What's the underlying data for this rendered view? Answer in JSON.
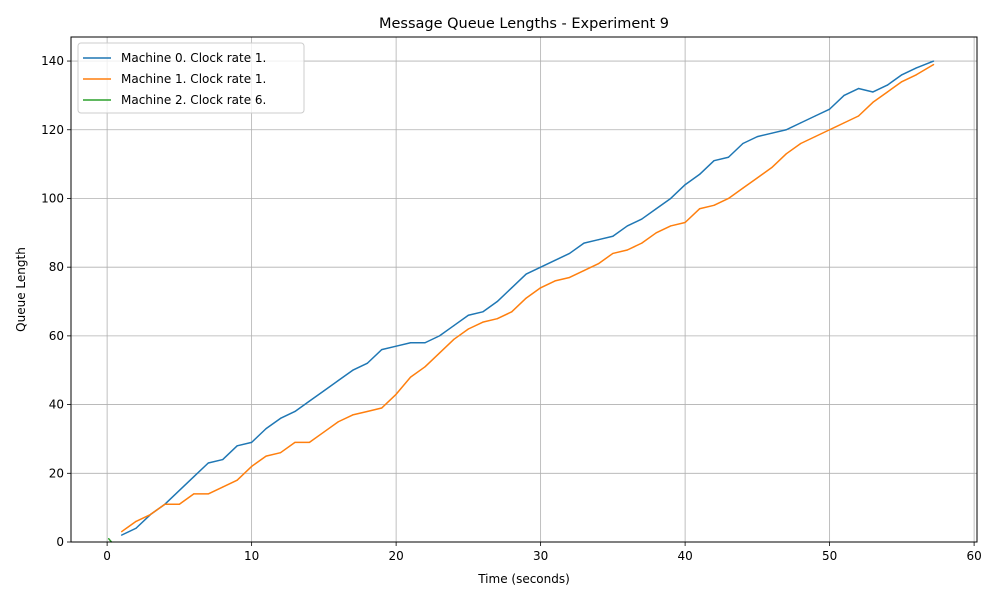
{
  "chart_data": {
    "type": "line",
    "title": "Message Queue Lengths - Experiment 9",
    "xlabel": "Time (seconds)",
    "ylabel": "Queue Length",
    "xlim": [
      -2.5,
      60.2
    ],
    "ylim": [
      0,
      147
    ],
    "xticks": [
      0,
      10,
      20,
      30,
      40,
      50,
      60
    ],
    "yticks": [
      0,
      20,
      40,
      60,
      80,
      100,
      120,
      140
    ],
    "grid": true,
    "legend_position": "top-left",
    "series": [
      {
        "name": "Machine 0. Clock rate 1.",
        "color": "#1f77b4",
        "x": [
          1,
          2,
          3,
          4,
          5,
          6,
          7,
          8,
          9,
          10,
          11,
          12,
          13,
          14,
          15,
          16,
          17,
          18,
          19,
          20,
          21,
          22,
          23,
          24,
          25,
          26,
          27,
          28,
          29,
          30,
          31,
          32,
          33,
          34,
          35,
          36,
          37,
          38,
          39,
          40,
          41,
          42,
          43,
          44,
          45,
          46,
          47,
          48,
          49,
          50,
          51,
          52,
          53,
          54,
          55,
          56,
          57.2
        ],
        "y": [
          2,
          4,
          8,
          11,
          15,
          19,
          23,
          24,
          28,
          29,
          33,
          36,
          38,
          41,
          44,
          47,
          50,
          52,
          56,
          57,
          58,
          58,
          60,
          63,
          66,
          67,
          70,
          74,
          78,
          80,
          82,
          84,
          87,
          88,
          89,
          92,
          94,
          97,
          100,
          104,
          107,
          111,
          112,
          116,
          118,
          119,
          120,
          122,
          124,
          126,
          130,
          132,
          131,
          133,
          136,
          138,
          140
        ]
      },
      {
        "name": "Machine 1. Clock rate 1.",
        "color": "#ff7f0e",
        "x": [
          1,
          2,
          3,
          4,
          5,
          6,
          7,
          8,
          9,
          10,
          11,
          12,
          13,
          14,
          15,
          16,
          17,
          18,
          19,
          20,
          21,
          22,
          23,
          24,
          25,
          26,
          27,
          28,
          29,
          30,
          31,
          32,
          33,
          34,
          35,
          36,
          37,
          38,
          39,
          40,
          41,
          42,
          43,
          44,
          45,
          46,
          47,
          48,
          49,
          50,
          51,
          52,
          53,
          54,
          55,
          56,
          57.2
        ],
        "y": [
          3,
          6,
          8,
          11,
          11,
          14,
          14,
          16,
          18,
          22,
          25,
          26,
          29,
          29,
          32,
          35,
          37,
          38,
          39,
          43,
          48,
          51,
          55,
          59,
          62,
          64,
          65,
          67,
          71,
          74,
          76,
          77,
          79,
          81,
          84,
          85,
          87,
          90,
          92,
          93,
          97,
          98,
          100,
          103,
          106,
          109,
          113,
          116,
          118,
          120,
          122,
          124,
          128,
          131,
          134,
          136,
          139
        ]
      },
      {
        "name": "Machine 2. Clock rate 6.",
        "color": "#2ca02c",
        "x": [
          0.1,
          0.3
        ],
        "y": [
          1,
          0
        ]
      }
    ]
  }
}
